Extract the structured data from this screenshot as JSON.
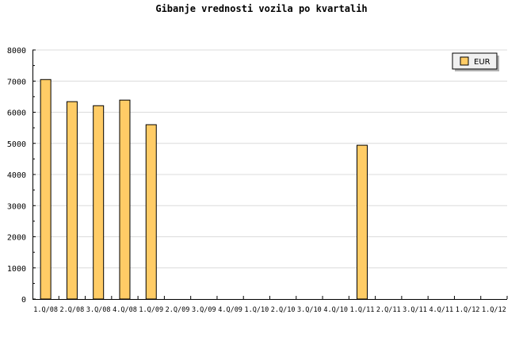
{
  "chart_data": {
    "type": "bar",
    "title": "Gibanje vrednosti vozila po kvartalih",
    "xlabel": "",
    "ylabel": "",
    "categories": [
      "1.Q/08",
      "2.Q/08",
      "3.Q/08",
      "4.Q/08",
      "1.Q/09",
      "2.Q/09",
      "3.Q/09",
      "4.Q/09",
      "1.Q/10",
      "2.Q/10",
      "3.Q/10",
      "4.Q/10",
      "1.Q/11",
      "2.Q/11",
      "3.Q/11",
      "4.Q/11",
      "1.Q/12",
      "1.Q/12"
    ],
    "series": [
      {
        "name": "EUR",
        "color": "#ffcc66",
        "values": [
          7050,
          6340,
          6210,
          6390,
          5600,
          0,
          0,
          0,
          0,
          0,
          0,
          0,
          4940,
          0,
          0,
          0,
          0,
          0
        ]
      }
    ],
    "ylim": [
      0,
      8000
    ],
    "yticks": [
      0,
      1000,
      2000,
      3000,
      4000,
      5000,
      6000,
      7000,
      8000
    ],
    "grid": true,
    "legend": "top-right"
  }
}
